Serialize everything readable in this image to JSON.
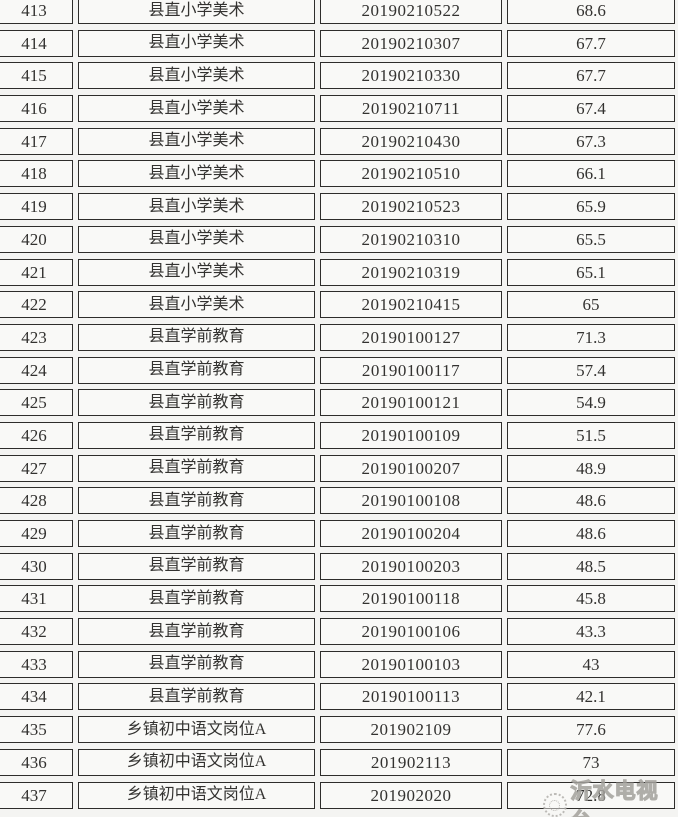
{
  "colors": {
    "page_background": "#f4f4f2",
    "cell_background": "#f9f9f7",
    "border": "#2e2d2b",
    "text": "#333230",
    "watermark": "#a3a19c"
  },
  "watermark": {
    "text": "沂水电视台",
    "logo": "circular-stamp"
  },
  "table": {
    "rows": [
      {
        "no": "413",
        "position": "县直小学美术",
        "id": "20190210522",
        "score": "68.6"
      },
      {
        "no": "414",
        "position": "县直小学美术",
        "id": "20190210307",
        "score": "67.7"
      },
      {
        "no": "415",
        "position": "县直小学美术",
        "id": "20190210330",
        "score": "67.7"
      },
      {
        "no": "416",
        "position": "县直小学美术",
        "id": "20190210711",
        "score": "67.4"
      },
      {
        "no": "417",
        "position": "县直小学美术",
        "id": "20190210430",
        "score": "67.3"
      },
      {
        "no": "418",
        "position": "县直小学美术",
        "id": "20190210510",
        "score": "66.1"
      },
      {
        "no": "419",
        "position": "县直小学美术",
        "id": "20190210523",
        "score": "65.9"
      },
      {
        "no": "420",
        "position": "县直小学美术",
        "id": "20190210310",
        "score": "65.5"
      },
      {
        "no": "421",
        "position": "县直小学美术",
        "id": "20190210319",
        "score": "65.1"
      },
      {
        "no": "422",
        "position": "县直小学美术",
        "id": "20190210415",
        "score": "65"
      },
      {
        "no": "423",
        "position": "县直学前教育",
        "id": "20190100127",
        "score": "71.3"
      },
      {
        "no": "424",
        "position": "县直学前教育",
        "id": "20190100117",
        "score": "57.4"
      },
      {
        "no": "425",
        "position": "县直学前教育",
        "id": "20190100121",
        "score": "54.9"
      },
      {
        "no": "426",
        "position": "县直学前教育",
        "id": "20190100109",
        "score": "51.5"
      },
      {
        "no": "427",
        "position": "县直学前教育",
        "id": "20190100207",
        "score": "48.9"
      },
      {
        "no": "428",
        "position": "县直学前教育",
        "id": "20190100108",
        "score": "48.6"
      },
      {
        "no": "429",
        "position": "县直学前教育",
        "id": "20190100204",
        "score": "48.6"
      },
      {
        "no": "430",
        "position": "县直学前教育",
        "id": "20190100203",
        "score": "48.5"
      },
      {
        "no": "431",
        "position": "县直学前教育",
        "id": "20190100118",
        "score": "45.8"
      },
      {
        "no": "432",
        "position": "县直学前教育",
        "id": "20190100106",
        "score": "43.3"
      },
      {
        "no": "433",
        "position": "县直学前教育",
        "id": "20190100103",
        "score": "43"
      },
      {
        "no": "434",
        "position": "县直学前教育",
        "id": "20190100113",
        "score": "42.1"
      },
      {
        "no": "435",
        "position": "乡镇初中语文岗位A",
        "id": "201902109",
        "score": "77.6"
      },
      {
        "no": "436",
        "position": "乡镇初中语文岗位A",
        "id": "201902113",
        "score": "73"
      },
      {
        "no": "437",
        "position": "乡镇初中语文岗位A",
        "id": "201902020",
        "score": "72.8"
      }
    ]
  }
}
